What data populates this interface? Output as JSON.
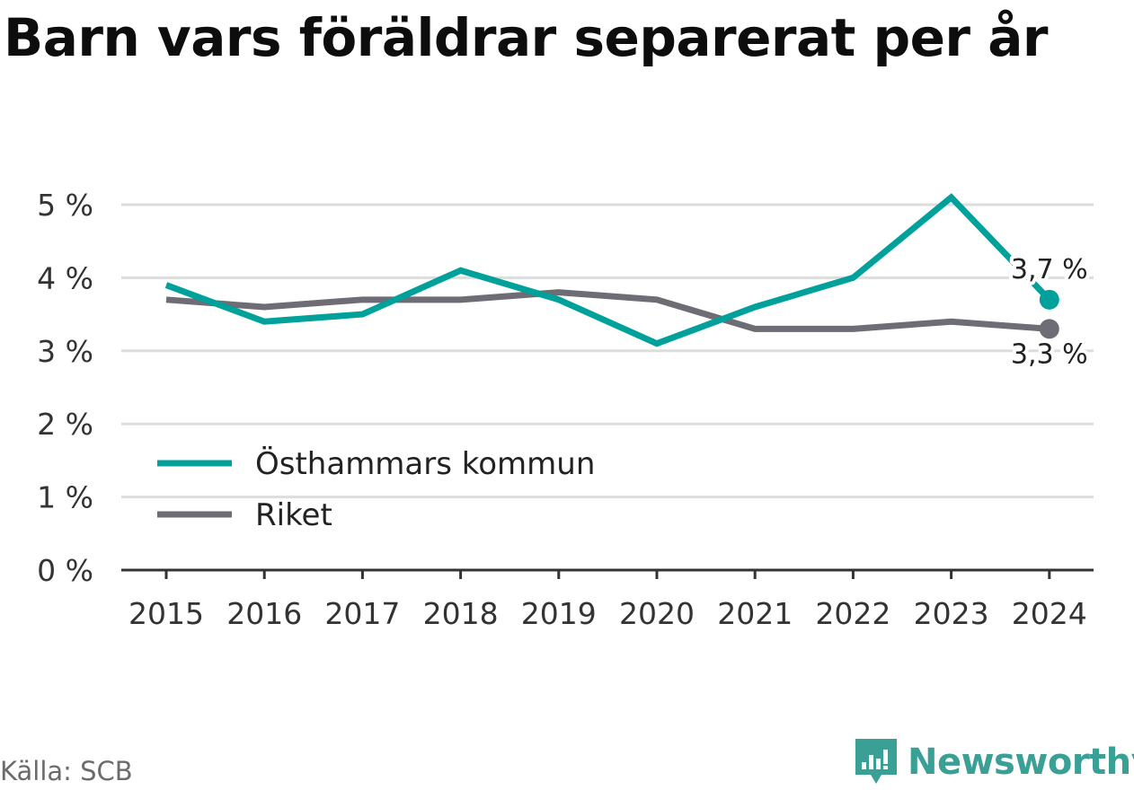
{
  "title": "Barn vars föräldrar separerat per år",
  "source": "Källa: SCB",
  "brand": "Newsworthy",
  "brand_icon": "newsworthy-logo-icon",
  "colors": {
    "series_0": "#00a19a",
    "series_1": "#6e6d75",
    "grid": "#dddddd",
    "axis": "#333333",
    "brand": "#3a9f95"
  },
  "chart_data": {
    "type": "line",
    "title": "Barn vars föräldrar separerat per år",
    "x": [
      "2015",
      "2016",
      "2017",
      "2018",
      "2019",
      "2020",
      "2021",
      "2022",
      "2023",
      "2024"
    ],
    "series": [
      {
        "name": "Östhammars kommun",
        "values": [
          3.9,
          3.4,
          3.5,
          4.1,
          3.7,
          3.1,
          3.6,
          4.0,
          5.1,
          3.7
        ],
        "end_label": "3,7 %"
      },
      {
        "name": "Riket",
        "values": [
          3.7,
          3.6,
          3.7,
          3.7,
          3.8,
          3.7,
          3.3,
          3.3,
          3.4,
          3.3
        ],
        "end_label": "3,3 %"
      }
    ],
    "y_ticks": [
      "0 %",
      "1 %",
      "2 %",
      "3 %",
      "4 %",
      "5 %"
    ],
    "ylim": [
      0,
      5
    ],
    "grid": true,
    "legend_position": "bottom-left"
  }
}
